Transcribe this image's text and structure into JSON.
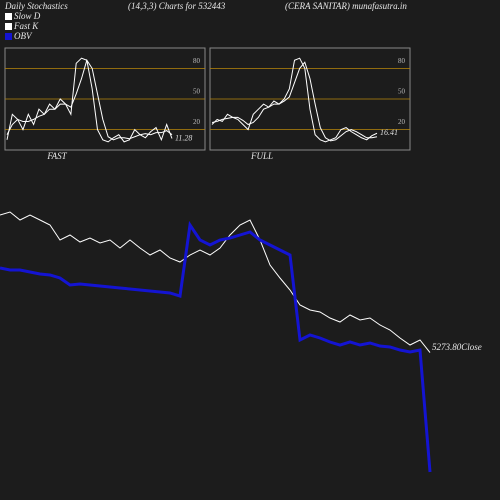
{
  "header": {
    "left": "Daily Stochastics",
    "middle": "(14,3,3) Charts for 532443",
    "right": "(CERA SANITAR) munafasutra.in"
  },
  "chart_data": [
    {
      "type": "line",
      "title": "FAST",
      "ylim": [
        0,
        100
      ],
      "yticks": [
        20,
        50,
        80
      ],
      "grid": true,
      "grid_color": "#b8860b",
      "series": [
        {
          "name": "Fast K",
          "color": "#ffffff",
          "values": [
            10,
            35,
            30,
            20,
            35,
            25,
            40,
            35,
            45,
            40,
            50,
            45,
            35,
            85,
            90,
            88,
            60,
            20,
            10,
            8,
            12,
            15,
            8,
            10,
            20,
            15,
            12,
            18,
            22,
            10,
            25,
            11.28
          ]
        },
        {
          "name": "Slow D",
          "color": "#ffffff",
          "values": [
            15,
            25,
            30,
            28,
            28,
            30,
            33,
            35,
            40,
            40,
            45,
            45,
            42,
            55,
            70,
            88,
            80,
            55,
            30,
            13,
            10,
            12,
            12,
            11,
            13,
            15,
            16,
            15,
            17,
            17,
            19,
            15
          ]
        }
      ]
    },
    {
      "type": "line",
      "title": "FULL",
      "ylim": [
        0,
        100
      ],
      "yticks": [
        20,
        50,
        80
      ],
      "grid": true,
      "grid_color": "#b8860b",
      "series": [
        {
          "color": "#ffffff",
          "values": [
            25,
            30,
            28,
            35,
            32,
            30,
            25,
            20,
            35,
            40,
            45,
            42,
            48,
            45,
            50,
            60,
            88,
            90,
            80,
            40,
            15,
            10,
            8,
            10,
            12,
            20,
            22,
            18,
            15,
            12,
            10,
            14,
            16.41
          ]
        },
        {
          "color": "#ffffff",
          "values": [
            27,
            28,
            30,
            31,
            32,
            32,
            29,
            25,
            27,
            32,
            40,
            42,
            45,
            45,
            48,
            52,
            66,
            80,
            86,
            70,
            45,
            22,
            12,
            9,
            10,
            14,
            18,
            20,
            18,
            15,
            12,
            12,
            13
          ]
        }
      ]
    },
    {
      "type": "line",
      "ylim": [
        4000,
        6800
      ],
      "y2lim": [
        -250,
        30
      ],
      "series": [
        {
          "name": "Close",
          "color": "#ffffff",
          "values": [
            6650,
            6680,
            6600,
            6650,
            6600,
            6550,
            6400,
            6450,
            6380,
            6420,
            6370,
            6400,
            6320,
            6400,
            6320,
            6250,
            6300,
            6220,
            6180,
            6250,
            6300,
            6250,
            6320,
            6450,
            6550,
            6600,
            6400,
            6150,
            6020,
            5900,
            5750,
            5700,
            5680,
            5620,
            5580,
            5650,
            5600,
            5620,
            5550,
            5500,
            5420,
            5350,
            5400,
            5273.8
          ],
          "value_labels": [
            null,
            null,
            null,
            null,
            null,
            null,
            null,
            null,
            null,
            null,
            null,
            null,
            null,
            null,
            null,
            null,
            null,
            null,
            null,
            null,
            null,
            null,
            null,
            null,
            null,
            null,
            null,
            null,
            null,
            null,
            null,
            null,
            null,
            null,
            null,
            null,
            null,
            null,
            null,
            null,
            null,
            null,
            null,
            "5273.80"
          ]
        },
        {
          "name": "OBV",
          "color": "#1414d2",
          "axis": "y2",
          "values": [
            -38,
            -40,
            -40,
            -42,
            -44,
            -45,
            -48,
            -55,
            -54,
            -55,
            -56,
            -57,
            -58,
            -59,
            -60,
            -61,
            -62,
            -63,
            -66,
            5,
            -10,
            -15,
            -10,
            -8,
            -5,
            -2,
            -10,
            -15,
            -20,
            -25,
            -110,
            -105,
            -108,
            -112,
            -115,
            -112,
            -115,
            -113,
            -116,
            -117,
            -120,
            -122,
            -120,
            -242
          ]
        }
      ]
    }
  ]
}
